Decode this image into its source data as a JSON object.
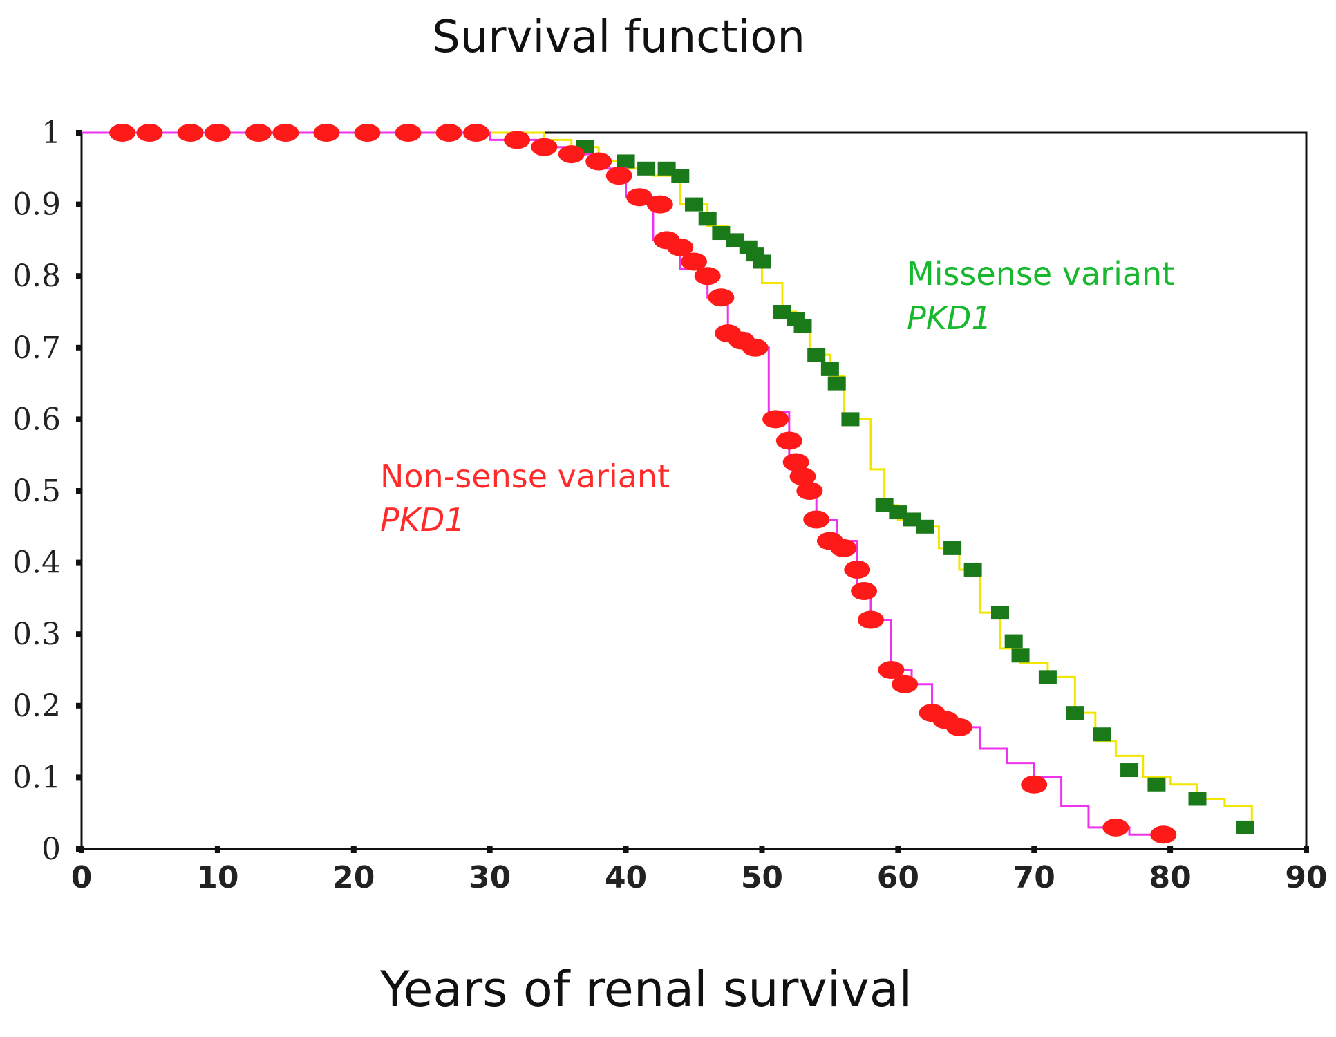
{
  "chart_data": {
    "type": "line",
    "title": "Survival function",
    "xlabel": "Years of renal survival",
    "ylabel": "",
    "xlim": [
      0,
      90
    ],
    "ylim": [
      0,
      1
    ],
    "x_ticks": [
      0,
      10,
      20,
      30,
      40,
      50,
      60,
      70,
      80,
      90
    ],
    "x_tick_labels": [
      "0",
      "10",
      "20",
      "30",
      "40",
      "50",
      "60",
      "70",
      "80",
      "90"
    ],
    "y_ticks": [
      0,
      0.1,
      0.2,
      0.3,
      0.4,
      0.5,
      0.6,
      0.7,
      0.8,
      0.9,
      1
    ],
    "y_tick_labels": [
      "0",
      "0.1",
      "0.2",
      "0.3",
      "0.4",
      "0.5",
      "0.6",
      "0.7",
      "0.8",
      "0.9",
      "1"
    ],
    "series": [
      {
        "name": "Missense variant PKD1",
        "label_line1": "Missense variant",
        "label_line2": "PKD1",
        "label_color": "#17b82e",
        "line_color": "#f2e600",
        "marker_color": "#1a7a1a",
        "marker": "square",
        "x": [
          0,
          34,
          36,
          38,
          40,
          42,
          44,
          46,
          47.5,
          48.5,
          49.5,
          50,
          51.5,
          52.5,
          53.5,
          55,
          56,
          58,
          59,
          60,
          61.5,
          63,
          64.5,
          66,
          67.5,
          69,
          71,
          73,
          74.5,
          76,
          78,
          80,
          82,
          84,
          86
        ],
        "y": [
          1,
          0.99,
          0.98,
          0.96,
          0.95,
          0.94,
          0.9,
          0.87,
          0.85,
          0.84,
          0.82,
          0.79,
          0.75,
          0.73,
          0.69,
          0.66,
          0.6,
          0.53,
          0.48,
          0.46,
          0.45,
          0.42,
          0.39,
          0.33,
          0.28,
          0.26,
          0.24,
          0.19,
          0.15,
          0.13,
          0.1,
          0.09,
          0.07,
          0.06,
          0.03
        ],
        "censored_x": [
          37,
          40,
          41.5,
          43,
          44,
          45,
          46,
          47,
          48,
          49,
          49.5,
          50,
          51.5,
          52.5,
          53,
          54,
          55,
          55.5,
          56.5,
          59,
          60,
          61,
          62,
          64,
          65.5,
          67.5,
          68.5,
          69,
          71,
          73,
          75,
          77,
          79,
          82,
          85.5
        ],
        "censored_y": [
          0.98,
          0.96,
          0.95,
          0.95,
          0.94,
          0.9,
          0.88,
          0.86,
          0.85,
          0.84,
          0.83,
          0.82,
          0.75,
          0.74,
          0.73,
          0.69,
          0.67,
          0.65,
          0.6,
          0.48,
          0.47,
          0.46,
          0.45,
          0.42,
          0.39,
          0.33,
          0.29,
          0.27,
          0.24,
          0.19,
          0.16,
          0.11,
          0.09,
          0.07,
          0.03
        ]
      },
      {
        "name": "Non-sense variant PKD1",
        "label_line1": "Non-sense variant",
        "label_line2": "PKD1",
        "label_color": "#ff2a2a",
        "line_color": "#ee33ee",
        "marker_color": "#ff1a1a",
        "marker": "circle",
        "x": [
          0,
          30,
          34,
          36,
          38,
          40,
          42,
          44,
          46,
          47.5,
          49,
          50.5,
          52,
          53,
          54,
          55.5,
          57,
          58,
          59.5,
          61,
          62.5,
          64,
          66,
          68,
          70,
          72,
          74,
          77,
          80
        ],
        "y": [
          1,
          0.99,
          0.98,
          0.97,
          0.95,
          0.91,
          0.85,
          0.81,
          0.77,
          0.72,
          0.7,
          0.61,
          0.53,
          0.5,
          0.46,
          0.43,
          0.37,
          0.32,
          0.25,
          0.23,
          0.18,
          0.17,
          0.14,
          0.12,
          0.1,
          0.06,
          0.03,
          0.02,
          0.01
        ],
        "censored_x": [
          3,
          5,
          8,
          10,
          13,
          15,
          18,
          21,
          24,
          27,
          29,
          32,
          34,
          36,
          38,
          39.5,
          41,
          42.5,
          43,
          44,
          45,
          46,
          47,
          47.5,
          48.5,
          49.5,
          51,
          52,
          52.5,
          53,
          53.5,
          54,
          55,
          56,
          57,
          57.5,
          58,
          59.5,
          60.5,
          62.5,
          63.5,
          64.5,
          70,
          76,
          79.5
        ],
        "censored_y": [
          1,
          1,
          1,
          1,
          1,
          1,
          1,
          1,
          1,
          1,
          1,
          0.99,
          0.98,
          0.97,
          0.96,
          0.94,
          0.91,
          0.9,
          0.85,
          0.84,
          0.82,
          0.8,
          0.77,
          0.72,
          0.71,
          0.7,
          0.6,
          0.57,
          0.54,
          0.52,
          0.5,
          0.46,
          0.43,
          0.42,
          0.39,
          0.36,
          0.32,
          0.25,
          0.23,
          0.19,
          0.18,
          0.17,
          0.09,
          0.03,
          0.02
        ]
      }
    ]
  }
}
